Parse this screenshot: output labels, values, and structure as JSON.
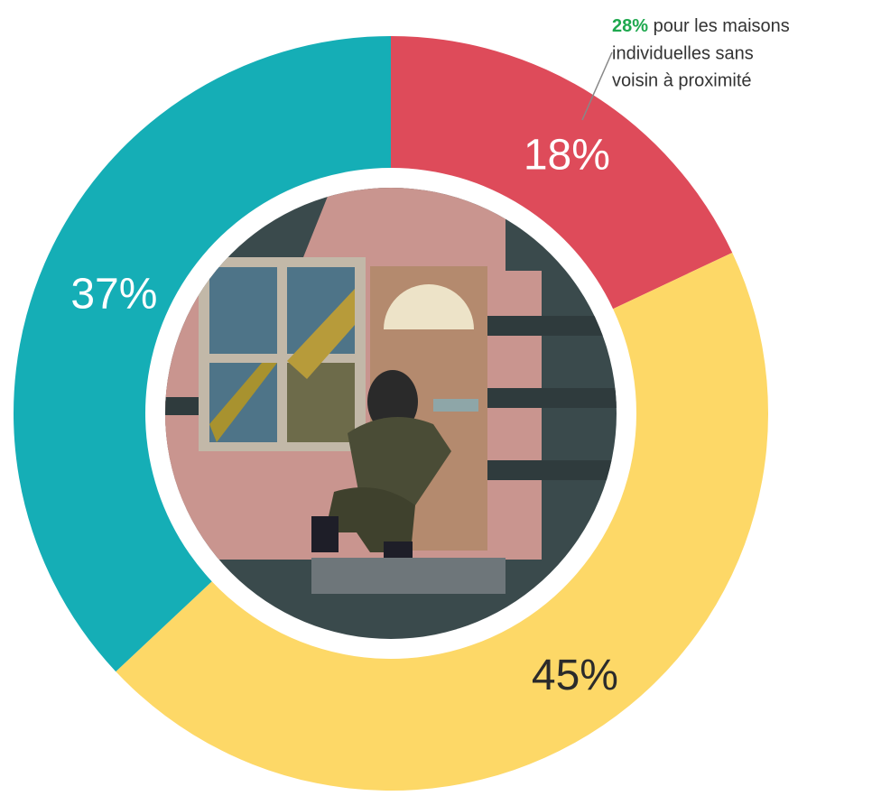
{
  "chart_data": {
    "type": "donut",
    "values": [
      18,
      45,
      37
    ],
    "value_labels": [
      "18%",
      "45%",
      "37%"
    ],
    "colors": [
      "#de4b5a",
      "#fdd867",
      "#15aeb6"
    ],
    "label_colors": [
      "#ffffff",
      "#2b2b2b",
      "#ffffff"
    ],
    "annotation": {
      "highlight": "28%",
      "highlight_color": "#1fa84f",
      "lines": [
        "pour les maisons",
        "individuelles sans",
        "voisin à proximité"
      ]
    }
  }
}
